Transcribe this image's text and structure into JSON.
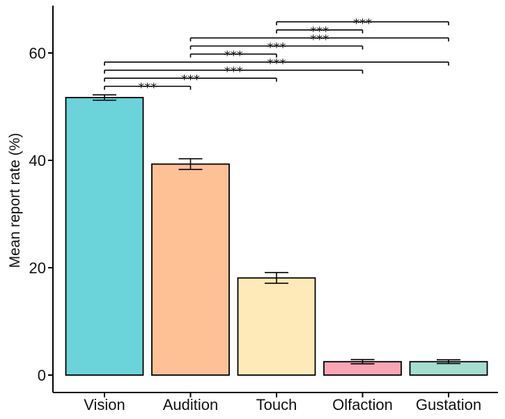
{
  "chart_data": {
    "type": "bar",
    "title": "",
    "xlabel": "",
    "ylabel": "Mean report rate (%)",
    "ylim": [
      0,
      69
    ],
    "yticks": [
      0,
      20,
      40,
      60
    ],
    "grid": false,
    "categories": [
      "Vision",
      "Audition",
      "Touch",
      "Olfaction",
      "Gustation"
    ],
    "values": [
      51.7,
      39.3,
      18.1,
      2.5,
      2.5
    ],
    "errors": [
      0.5,
      1.0,
      1.0,
      0.4,
      0.35
    ],
    "colors": [
      "#6bd3da",
      "#fdc195",
      "#fdeab8",
      "#f9a6b3",
      "#a5ddd0"
    ],
    "significance": [
      {
        "from": 0,
        "to": 1,
        "y": 53.8,
        "label": "***"
      },
      {
        "from": 0,
        "to": 2,
        "y": 55.3,
        "label": "***"
      },
      {
        "from": 0,
        "to": 3,
        "y": 56.8,
        "label": "***"
      },
      {
        "from": 0,
        "to": 4,
        "y": 58.3,
        "label": "***"
      },
      {
        "from": 1,
        "to": 2,
        "y": 59.8,
        "label": "***"
      },
      {
        "from": 1,
        "to": 3,
        "y": 61.3,
        "label": "***"
      },
      {
        "from": 1,
        "to": 4,
        "y": 62.8,
        "label": "***"
      },
      {
        "from": 2,
        "to": 3,
        "y": 64.3,
        "label": "***"
      },
      {
        "from": 2,
        "to": 4,
        "y": 65.8,
        "label": "***"
      }
    ]
  }
}
